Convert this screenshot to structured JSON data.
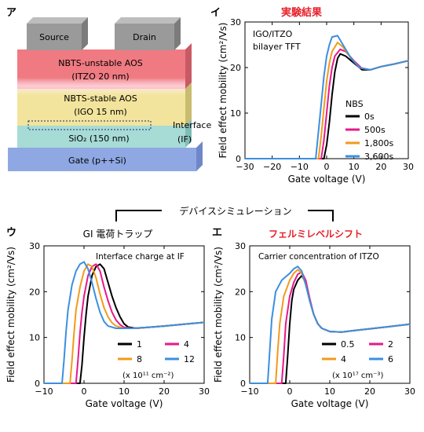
{
  "panels": {
    "a": {
      "letter": "ア",
      "layers": {
        "source": "Source",
        "drain": "Drain",
        "itzo_line1": "NBTS-unstable AOS",
        "itzo_line2": "(ITZO 20 nm)",
        "igo_line1": "NBTS-stable AOS",
        "igo_line2": "(IGO 15 nm)",
        "interface_line1": "Interface",
        "interface_line2": "(IF)",
        "sio2": "SiO₂ (150 nm)",
        "gate": "Gate (p++Si)"
      },
      "colors": {
        "electrode": "#9a9a9a",
        "itzo": "#f07a82",
        "igo": "#f2e49c",
        "sio2": "#a7dbd6",
        "gate": "#8fa8e3"
      }
    },
    "b": {
      "letter": "イ",
      "header": "実験結果",
      "header_color": "#e8202a",
      "annotation_line1": "IGO/ITZO",
      "annotation_line2": "bilayer TFT",
      "legend_title": "NBS"
    },
    "c": {
      "letter": "ウ",
      "header": "GI 電荷トラップ",
      "annotation": "Interface charge at IF",
      "unit_note": "(x 10¹¹ cm⁻²)"
    },
    "d": {
      "letter": "エ",
      "header": "フェルミレベルシフト",
      "header_color": "#e8202a",
      "annotation": "Carrier concentration of ITZO",
      "unit_note": "(x 10¹⁷ cm⁻³)"
    },
    "simulation_label": "デバイスシミュレーション"
  },
  "chart_data": [
    {
      "id": "b",
      "type": "line",
      "xlabel": "Gate voltage (V)",
      "ylabel": "Field effect mobility (cm²/Vs)",
      "xlim": [
        -30,
        30
      ],
      "ylim": [
        0,
        30
      ],
      "xticks": [
        -30,
        -20,
        -10,
        0,
        10,
        20,
        30
      ],
      "yticks": [
        0,
        10,
        20,
        30
      ],
      "legend_position": "center-right",
      "series": [
        {
          "name": "0s",
          "color": "#000000",
          "points": [
            [
              -30,
              0
            ],
            [
              -1,
              0
            ],
            [
              0,
              3
            ],
            [
              1,
              8
            ],
            [
              2,
              14
            ],
            [
              3,
              19
            ],
            [
              4,
              22
            ],
            [
              5,
              23
            ],
            [
              7,
              22.5
            ],
            [
              10,
              21
            ],
            [
              13,
              19.5
            ],
            [
              16,
              19.5
            ],
            [
              20,
              20.2
            ],
            [
              25,
              20.8
            ],
            [
              30,
              21.5
            ]
          ]
        },
        {
          "name": "500s",
          "color": "#e6198a",
          "points": [
            [
              -30,
              0
            ],
            [
              -2,
              0
            ],
            [
              -1,
              4
            ],
            [
              0,
              10
            ],
            [
              1,
              16
            ],
            [
              2,
              20
            ],
            [
              3,
              22.5
            ],
            [
              5,
              24
            ],
            [
              7,
              23.5
            ],
            [
              10,
              21.5
            ],
            [
              13,
              19.8
            ],
            [
              16,
              19.5
            ],
            [
              20,
              20.2
            ],
            [
              25,
              20.8
            ],
            [
              30,
              21.5
            ]
          ]
        },
        {
          "name": "1,800s",
          "color": "#f39a1b",
          "points": [
            [
              -30,
              0
            ],
            [
              -3,
              0
            ],
            [
              -2,
              5
            ],
            [
              -1,
              11
            ],
            [
              0,
              17
            ],
            [
              1,
              21
            ],
            [
              2,
              23.5
            ],
            [
              4,
              25.5
            ],
            [
              6,
              24.5
            ],
            [
              9,
              22
            ],
            [
              12,
              20
            ],
            [
              16,
              19.5
            ],
            [
              20,
              20.2
            ],
            [
              25,
              20.8
            ],
            [
              30,
              21.5
            ]
          ]
        },
        {
          "name": "3,600s",
          "color": "#3b8fe0",
          "points": [
            [
              -30,
              0
            ],
            [
              -4,
              0
            ],
            [
              -3,
              6
            ],
            [
              -2,
              12
            ],
            [
              -1,
              18
            ],
            [
              0,
              22.5
            ],
            [
              1,
              25
            ],
            [
              2,
              26.7
            ],
            [
              4,
              27
            ],
            [
              6,
              25
            ],
            [
              9,
              22
            ],
            [
              12,
              20
            ],
            [
              16,
              19.5
            ],
            [
              20,
              20.2
            ],
            [
              25,
              20.8
            ],
            [
              30,
              21.5
            ]
          ]
        }
      ]
    },
    {
      "id": "c",
      "type": "line",
      "xlabel": "Gate voltage (V)",
      "ylabel": "Field effect mobility (cm²/Vs)",
      "xlim": [
        -10,
        30
      ],
      "ylim": [
        0,
        30
      ],
      "xticks": [
        -10,
        0,
        10,
        20,
        30
      ],
      "yticks": [
        0,
        10,
        20,
        30
      ],
      "legend_position": "bottom-right",
      "series": [
        {
          "name": "1",
          "color": "#000000",
          "points": [
            [
              -10,
              0
            ],
            [
              -1,
              0
            ],
            [
              -0.5,
              4
            ],
            [
              0,
              10
            ],
            [
              0.5,
              15
            ],
            [
              1,
              19
            ],
            [
              2,
              23.5
            ],
            [
              3,
              25.5
            ],
            [
              4,
              26
            ],
            [
              5,
              25
            ],
            [
              6,
              22
            ],
            [
              7,
              19
            ],
            [
              8,
              16.5
            ],
            [
              9,
              14.5
            ],
            [
              10,
              13
            ],
            [
              11,
              12.3
            ],
            [
              13,
              12
            ],
            [
              16,
              12.2
            ],
            [
              20,
              12.5
            ],
            [
              25,
              12.9
            ],
            [
              30,
              13.3
            ]
          ]
        },
        {
          "name": "4",
          "color": "#e6198a",
          "points": [
            [
              -10,
              0
            ],
            [
              -2,
              0
            ],
            [
              -1.5,
              5
            ],
            [
              -1,
              11
            ],
            [
              -0.5,
              15.5
            ],
            [
              0,
              19
            ],
            [
              1,
              23.5
            ],
            [
              2,
              25.5
            ],
            [
              3,
              26
            ],
            [
              4,
              24.5
            ],
            [
              5,
              21
            ],
            [
              6,
              18
            ],
            [
              7,
              15.5
            ],
            [
              8,
              13.8
            ],
            [
              9,
              12.8
            ],
            [
              10,
              12.2
            ],
            [
              12,
              12
            ],
            [
              16,
              12.2
            ],
            [
              20,
              12.5
            ],
            [
              25,
              12.9
            ],
            [
              30,
              13.3
            ]
          ]
        },
        {
          "name": "8",
          "color": "#f39a1b",
          "points": [
            [
              -10,
              0
            ],
            [
              -3.5,
              0
            ],
            [
              -3,
              5
            ],
            [
              -2.5,
              11
            ],
            [
              -2,
              16
            ],
            [
              -1,
              21
            ],
            [
              0,
              24.5
            ],
            [
              1,
              26
            ],
            [
              2,
              25.5
            ],
            [
              3,
              23
            ],
            [
              4,
              19.5
            ],
            [
              5,
              16.5
            ],
            [
              6,
              14.5
            ],
            [
              7,
              13.2
            ],
            [
              8,
              12.5
            ],
            [
              10,
              12
            ],
            [
              13,
              12
            ],
            [
              16,
              12.2
            ],
            [
              20,
              12.5
            ],
            [
              25,
              12.9
            ],
            [
              30,
              13.3
            ]
          ]
        },
        {
          "name": "12",
          "color": "#3b8fe0",
          "points": [
            [
              -10,
              0
            ],
            [
              -5.5,
              0
            ],
            [
              -5,
              5
            ],
            [
              -4.5,
              11
            ],
            [
              -4,
              16
            ],
            [
              -3,
              21.5
            ],
            [
              -2,
              24.5
            ],
            [
              -1,
              26
            ],
            [
              0,
              26.5
            ],
            [
              1,
              25
            ],
            [
              2,
              22
            ],
            [
              3,
              18.5
            ],
            [
              4,
              15.5
            ],
            [
              5,
              13.5
            ],
            [
              6,
              12.5
            ],
            [
              8,
              12
            ],
            [
              12,
              12
            ],
            [
              16,
              12.2
            ],
            [
              20,
              12.5
            ],
            [
              25,
              12.9
            ],
            [
              30,
              13.3
            ]
          ]
        }
      ]
    },
    {
      "id": "d",
      "type": "line",
      "xlabel": "Gate voltage (V)",
      "ylabel": "Field effect mobility (cm²/Vs)",
      "xlim": [
        -10,
        30
      ],
      "ylim": [
        0,
        30
      ],
      "xticks": [
        -10,
        0,
        10,
        20,
        30
      ],
      "yticks": [
        0,
        10,
        20,
        30
      ],
      "legend_position": "bottom-right",
      "series": [
        {
          "name": "0.5",
          "color": "#000000",
          "points": [
            [
              -10,
              0
            ],
            [
              -1,
              0
            ],
            [
              -0.5,
              6
            ],
            [
              0,
              13
            ],
            [
              0.5,
              18
            ],
            [
              1,
              20.5
            ],
            [
              2,
              22.5
            ],
            [
              3,
              23.5
            ],
            [
              4,
              22
            ],
            [
              5,
              18
            ],
            [
              6,
              15
            ],
            [
              7,
              13
            ],
            [
              8,
              12
            ],
            [
              10,
              11.3
            ],
            [
              13,
              11.2
            ],
            [
              16,
              11.5
            ],
            [
              20,
              11.9
            ],
            [
              25,
              12.4
            ],
            [
              30,
              12.9
            ]
          ]
        },
        {
          "name": "2",
          "color": "#e6198a",
          "points": [
            [
              -10,
              0
            ],
            [
              -2,
              0
            ],
            [
              -1.5,
              6
            ],
            [
              -1,
              13
            ],
            [
              0,
              19
            ],
            [
              1,
              22
            ],
            [
              2,
              23.8
            ],
            [
              3,
              24.3
            ],
            [
              4,
              22.5
            ],
            [
              5,
              18.5
            ],
            [
              6,
              15
            ],
            [
              7,
              13
            ],
            [
              8,
              12
            ],
            [
              10,
              11.3
            ],
            [
              13,
              11.2
            ],
            [
              16,
              11.5
            ],
            [
              20,
              11.9
            ],
            [
              25,
              12.4
            ],
            [
              30,
              12.9
            ]
          ]
        },
        {
          "name": "4",
          "color": "#f39a1b",
          "points": [
            [
              -10,
              0
            ],
            [
              -3.5,
              0
            ],
            [
              -3,
              7
            ],
            [
              -2.5,
              13
            ],
            [
              -1.5,
              19
            ],
            [
              0,
              22.5
            ],
            [
              1,
              24
            ],
            [
              2,
              24.8
            ],
            [
              3,
              24
            ],
            [
              4,
              21.5
            ],
            [
              5,
              18
            ],
            [
              6,
              15
            ],
            [
              7,
              13
            ],
            [
              8,
              12
            ],
            [
              10,
              11.3
            ],
            [
              13,
              11.2
            ],
            [
              16,
              11.5
            ],
            [
              20,
              11.9
            ],
            [
              25,
              12.4
            ],
            [
              30,
              12.9
            ]
          ]
        },
        {
          "name": "6",
          "color": "#3b8fe0",
          "points": [
            [
              -10,
              0
            ],
            [
              -5.5,
              0
            ],
            [
              -5,
              7
            ],
            [
              -4.5,
              14
            ],
            [
              -3.5,
              20
            ],
            [
              -2,
              22.5
            ],
            [
              0,
              24
            ],
            [
              1,
              25
            ],
            [
              2,
              25.5
            ],
            [
              3,
              24.5
            ],
            [
              4,
              21.5
            ],
            [
              5,
              18
            ],
            [
              6,
              15
            ],
            [
              7,
              13
            ],
            [
              8,
              12
            ],
            [
              10,
              11.3
            ],
            [
              13,
              11.2
            ],
            [
              16,
              11.5
            ],
            [
              20,
              11.9
            ],
            [
              25,
              12.4
            ],
            [
              30,
              12.9
            ]
          ]
        }
      ]
    }
  ]
}
